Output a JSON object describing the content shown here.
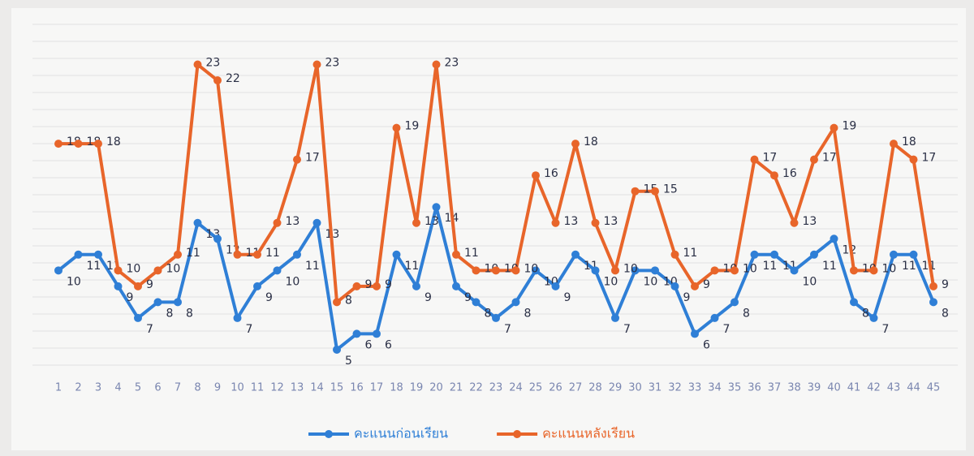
{
  "chart_data": {
    "type": "line",
    "categories": [
      "1",
      "2",
      "3",
      "4",
      "5",
      "6",
      "7",
      "8",
      "9",
      "10",
      "11",
      "12",
      "13",
      "14",
      "15",
      "16",
      "17",
      "18",
      "19",
      "20",
      "21",
      "22",
      "23",
      "24",
      "25",
      "26",
      "27",
      "28",
      "29",
      "30",
      "31",
      "32",
      "33",
      "34",
      "35",
      "36",
      "37",
      "38",
      "39",
      "40",
      "41",
      "42",
      "43",
      "44",
      "45"
    ],
    "series": [
      {
        "name": "คะแนนก่อนเรียน",
        "color": "#2f7fd6",
        "values": [
          10,
          11,
          11,
          9,
          7,
          8,
          8,
          13,
          12,
          7,
          9,
          10,
          11,
          13,
          5,
          6,
          6,
          11,
          9,
          14,
          9,
          8,
          7,
          8,
          10,
          9,
          11,
          10,
          7,
          10,
          10,
          9,
          6,
          7,
          8,
          11,
          11,
          10,
          11,
          12,
          8,
          7,
          11,
          11,
          8
        ]
      },
      {
        "name": "คะแนนหลังเรียน",
        "color": "#e8652a",
        "values": [
          18,
          18,
          18,
          10,
          9,
          10,
          11,
          23,
          22,
          11,
          11,
          13,
          17,
          23,
          8,
          9,
          9,
          19,
          13,
          23,
          11,
          10,
          10,
          10,
          16,
          13,
          18,
          13,
          10,
          15,
          15,
          11,
          9,
          10,
          10,
          17,
          16,
          13,
          17,
          19,
          10,
          10,
          18,
          17,
          9
        ]
      }
    ],
    "ylim": [
      3,
      24
    ],
    "legend": "bottom"
  }
}
